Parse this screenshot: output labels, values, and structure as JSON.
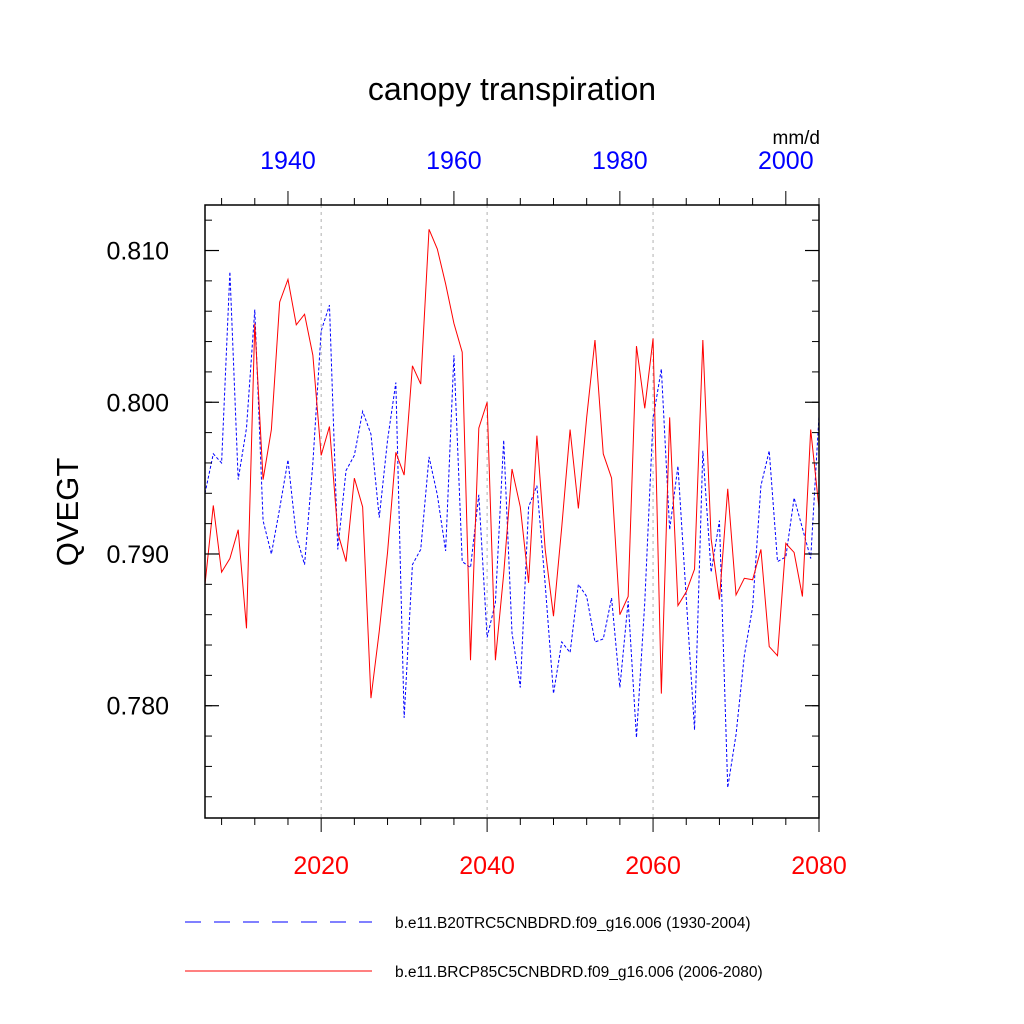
{
  "chart_data": {
    "type": "line",
    "title": "canopy transpiration",
    "ylabel": "QVEGT",
    "units": "mm/d",
    "ylim": [
      0.7726,
      0.813
    ],
    "y_ticks": [
      "0.780",
      "0.790",
      "0.800",
      "0.810"
    ],
    "bottom_axis": {
      "range": [
        2006,
        2080
      ],
      "ticks": [
        "2020",
        "2040",
        "2060",
        "2080"
      ],
      "color": "#ff0000"
    },
    "top_axis": {
      "range": [
        1930,
        2004
      ],
      "ticks": [
        "1940",
        "1960",
        "1980",
        "2000"
      ],
      "color": "#0000ff"
    },
    "grid": "vertical dashed at major ticks",
    "legend_placement": "bottom",
    "series": [
      {
        "name": "b.e11.B20TRC5CNBDRD.f09_g16.006 (1930-2004)",
        "color": "#0000ff",
        "dash": "dashed",
        "x": [
          1930,
          1931,
          1932,
          1933,
          1934,
          1935,
          1936,
          1937,
          1938,
          1939,
          1940,
          1941,
          1942,
          1943,
          1944,
          1945,
          1946,
          1947,
          1948,
          1949,
          1950,
          1951,
          1952,
          1953,
          1954,
          1955,
          1956,
          1957,
          1958,
          1959,
          1960,
          1961,
          1962,
          1963,
          1964,
          1965,
          1966,
          1967,
          1968,
          1969,
          1970,
          1971,
          1972,
          1973,
          1974,
          1975,
          1976,
          1977,
          1978,
          1979,
          1980,
          1981,
          1982,
          1983,
          1984,
          1985,
          1986,
          1987,
          1988,
          1989,
          1990,
          1991,
          1992,
          1993,
          1994,
          1995,
          1996,
          1997,
          1998,
          1999,
          2000,
          2001,
          2002,
          2003,
          2004
        ],
        "values": [
          0.794,
          0.7966,
          0.796,
          0.8086,
          0.7949,
          0.7983,
          0.8061,
          0.7922,
          0.79,
          0.793,
          0.7962,
          0.7912,
          0.7893,
          0.796,
          0.8047,
          0.8064,
          0.7903,
          0.7955,
          0.7965,
          0.7994,
          0.7979,
          0.7924,
          0.7975,
          0.8013,
          0.7792,
          0.7893,
          0.7903,
          0.7964,
          0.7939,
          0.7902,
          0.8031,
          0.7895,
          0.7891,
          0.7939,
          0.7845,
          0.7868,
          0.7975,
          0.7848,
          0.7812,
          0.7931,
          0.7945,
          0.788,
          0.7808,
          0.7842,
          0.7835,
          0.788,
          0.7872,
          0.7842,
          0.7844,
          0.7871,
          0.7812,
          0.7869,
          0.7779,
          0.7868,
          0.7989,
          0.8022,
          0.7916,
          0.7958,
          0.7871,
          0.7784,
          0.7968,
          0.7888,
          0.7922,
          0.7746,
          0.7781,
          0.7833,
          0.7865,
          0.7945,
          0.7968,
          0.7895,
          0.7898,
          0.7937,
          0.7917,
          0.7897,
          0.7991
        ]
      },
      {
        "name": "b.e11.BRCP85C5CNBDRD.f09_g16.006 (2006-2080)",
        "color": "#ff0000",
        "dash": "solid",
        "x": [
          2006,
          2007,
          2008,
          2009,
          2010,
          2011,
          2012,
          2013,
          2014,
          2015,
          2016,
          2017,
          2018,
          2019,
          2020,
          2021,
          2022,
          2023,
          2024,
          2025,
          2026,
          2027,
          2028,
          2029,
          2030,
          2031,
          2032,
          2033,
          2034,
          2035,
          2036,
          2037,
          2038,
          2039,
          2040,
          2041,
          2042,
          2043,
          2044,
          2045,
          2046,
          2047,
          2048,
          2049,
          2050,
          2051,
          2052,
          2053,
          2054,
          2055,
          2056,
          2057,
          2058,
          2059,
          2060,
          2061,
          2062,
          2063,
          2064,
          2065,
          2066,
          2067,
          2068,
          2069,
          2070,
          2071,
          2072,
          2073,
          2074,
          2075,
          2076,
          2077,
          2078,
          2079,
          2080
        ],
        "values": [
          0.788,
          0.7932,
          0.7888,
          0.7897,
          0.7916,
          0.7851,
          0.8052,
          0.7949,
          0.7982,
          0.8066,
          0.8081,
          0.8051,
          0.8058,
          0.8031,
          0.7965,
          0.7984,
          0.7914,
          0.7895,
          0.795,
          0.7931,
          0.7805,
          0.7849,
          0.7901,
          0.7967,
          0.7952,
          0.8024,
          0.8012,
          0.8114,
          0.8101,
          0.8078,
          0.8052,
          0.8033,
          0.783,
          0.7983,
          0.8,
          0.783,
          0.7887,
          0.7956,
          0.7931,
          0.7881,
          0.7978,
          0.7903,
          0.7859,
          0.7918,
          0.7982,
          0.793,
          0.799,
          0.8041,
          0.7966,
          0.795,
          0.786,
          0.7872,
          0.8037,
          0.7996,
          0.8042,
          0.7808,
          0.799,
          0.7866,
          0.7875,
          0.789,
          0.8041,
          0.791,
          0.787,
          0.7943,
          0.7873,
          0.7884,
          0.7883,
          0.7903,
          0.7839,
          0.7833,
          0.7907,
          0.7901,
          0.7872,
          0.7982,
          0.793
        ]
      }
    ]
  }
}
